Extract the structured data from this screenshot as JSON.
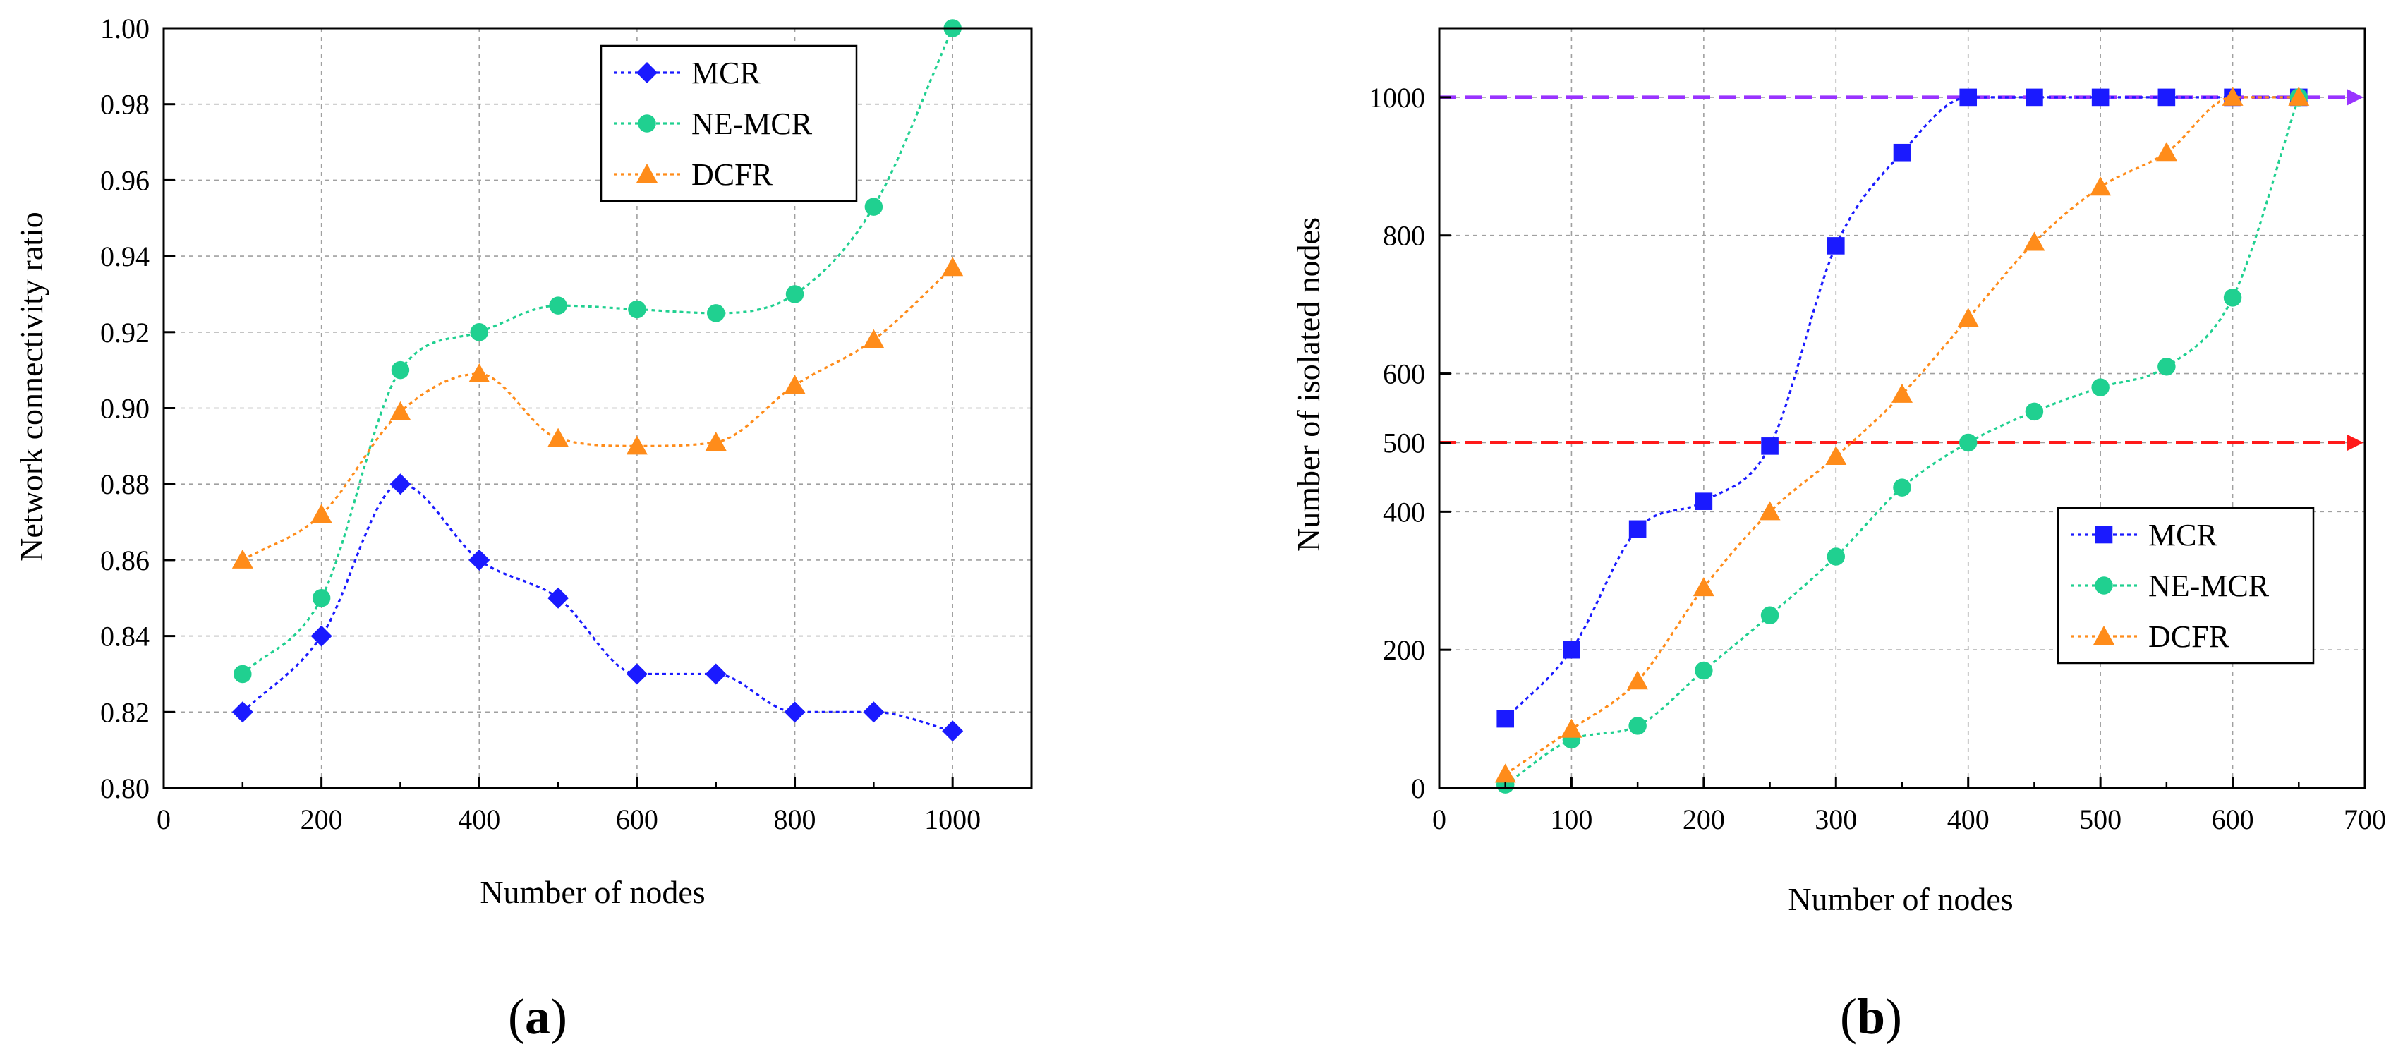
{
  "chart_data": [
    {
      "type": "line",
      "panel_label": "a",
      "xlabel": "Number of nodes",
      "ylabel": "Network connectivity ratio",
      "xlim": [
        0,
        1100
      ],
      "ylim": [
        0.8,
        1.0
      ],
      "xticks": [
        0,
        200,
        400,
        600,
        800,
        1000
      ],
      "yticks": [
        0.8,
        0.82,
        0.84,
        0.86,
        0.88,
        0.9,
        0.92,
        0.94,
        0.96,
        0.98,
        1.0
      ],
      "ytick_labels": [
        "0.80",
        "0.82",
        "0.84",
        "0.86",
        "0.88",
        "0.90",
        "0.92",
        "0.94",
        "0.96",
        "0.98",
        "1.00"
      ],
      "grid": true,
      "legend_position": "top-right",
      "x": [
        100,
        200,
        300,
        400,
        500,
        600,
        700,
        800,
        900,
        1000
      ],
      "series": [
        {
          "name": "MCR",
          "color": "#1a1aff",
          "marker": "diamond",
          "values": [
            0.82,
            0.84,
            0.88,
            0.86,
            0.85,
            0.83,
            0.83,
            0.82,
            0.82,
            0.815
          ]
        },
        {
          "name": "NE-MCR",
          "color": "#20d090",
          "marker": "circle",
          "values": [
            0.83,
            0.85,
            0.91,
            0.92,
            0.927,
            0.926,
            0.925,
            0.93,
            0.953,
            1.0
          ]
        },
        {
          "name": "DCFR",
          "color": "#ff8c1a",
          "marker": "triangle",
          "values": [
            0.86,
            0.872,
            0.899,
            0.909,
            0.892,
            0.89,
            0.891,
            0.906,
            0.918,
            0.937
          ]
        }
      ]
    },
    {
      "type": "line",
      "panel_label": "b",
      "xlabel": "Number of nodes",
      "ylabel": "Number of isolated nodes",
      "xlim": [
        0,
        700
      ],
      "ylim": [
        0,
        1100
      ],
      "xticks": [
        0,
        100,
        200,
        300,
        400,
        500,
        600,
        700
      ],
      "yticks": [
        0,
        200,
        400,
        500,
        600,
        800,
        1000
      ],
      "ytick_labels": [
        "0",
        "200",
        "400",
        "500",
        "600",
        "800",
        "1000"
      ],
      "grid": true,
      "legend_position": "bottom-right",
      "reference_lines": [
        {
          "y": 1000,
          "color": "#9933ff"
        },
        {
          "y": 500,
          "color": "#ff1a1a"
        }
      ],
      "x": [
        50,
        100,
        150,
        200,
        250,
        300,
        350,
        400,
        450,
        500,
        550,
        600,
        650
      ],
      "series": [
        {
          "name": "MCR",
          "color": "#1a1aff",
          "marker": "square",
          "values": [
            100,
            200,
            375,
            415,
            495,
            785,
            920,
            1000,
            1000,
            1000,
            1000,
            1000,
            1000
          ]
        },
        {
          "name": "NE-MCR",
          "color": "#20d090",
          "marker": "circle",
          "values": [
            5,
            70,
            90,
            170,
            250,
            335,
            435,
            500,
            545,
            580,
            610,
            710,
            1000
          ]
        },
        {
          "name": "DCFR",
          "color": "#ff8c1a",
          "marker": "triangle",
          "values": [
            20,
            85,
            155,
            290,
            400,
            480,
            570,
            680,
            790,
            870,
            920,
            1000,
            1000
          ]
        }
      ]
    }
  ]
}
